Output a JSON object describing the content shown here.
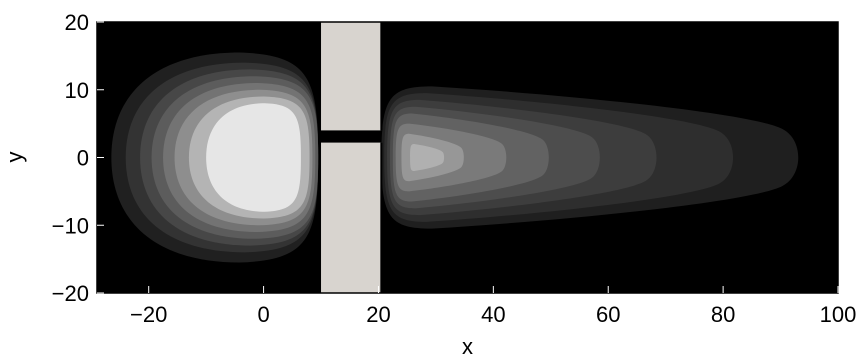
{
  "chart_data": {
    "type": "contour",
    "title": "",
    "xlabel": "x",
    "ylabel": "y",
    "xlim": [
      -29,
      100
    ],
    "ylim": [
      -20,
      20
    ],
    "xticks": [
      -20,
      0,
      20,
      40,
      60,
      80,
      100
    ],
    "yticks": [
      -20,
      -10,
      0,
      10,
      20
    ],
    "xtick_labels": [
      "−20",
      "0",
      "20",
      "40",
      "60",
      "80",
      "100"
    ],
    "ytick_labels": [
      "−20",
      "−10",
      "0",
      "10",
      "20"
    ],
    "background_color": "#000000",
    "wall": {
      "color": "#d8d4cf",
      "x_range": [
        10,
        20.5
      ],
      "slit_y_range": [
        2.2,
        4.0
      ]
    },
    "left_lobe": {
      "center": [
        -3,
        0
      ],
      "levels": [
        {
          "x_extent": [
            -26.5,
            9.5
          ],
          "y_half": 15.5,
          "color": "#202020"
        },
        {
          "x_extent": [
            -24.0,
            9.5
          ],
          "y_half": 14.0,
          "color": "#333333"
        },
        {
          "x_extent": [
            -21.5,
            9.5
          ],
          "y_half": 13.0,
          "color": "#474747"
        },
        {
          "x_extent": [
            -19.5,
            9.5
          ],
          "y_half": 12.0,
          "color": "#5c5c5c"
        },
        {
          "x_extent": [
            -17.5,
            9.0
          ],
          "y_half": 11.0,
          "color": "#737373"
        },
        {
          "x_extent": [
            -15.5,
            8.5
          ],
          "y_half": 10.0,
          "color": "#8e8e8e"
        },
        {
          "x_extent": [
            -13.0,
            8.0
          ],
          "y_half": 9.0,
          "color": "#b4b4b4"
        },
        {
          "x_extent": [
            -10.0,
            6.5
          ],
          "y_half": 8.0,
          "color": "#e6e6e6"
        }
      ]
    },
    "right_lobe": {
      "levels": [
        {
          "x_extent": [
            20.5,
            94.0
          ],
          "y_half": 10.5,
          "color": "#1f1f1f"
        },
        {
          "x_extent": [
            21.0,
            82.5
          ],
          "y_half": 9.5,
          "color": "#2e2e2e"
        },
        {
          "x_extent": [
            21.5,
            69.0
          ],
          "y_half": 8.5,
          "color": "#3d3d3d"
        },
        {
          "x_extent": [
            22.0,
            59.0
          ],
          "y_half": 7.5,
          "color": "#4d4d4d"
        },
        {
          "x_extent": [
            22.5,
            50.0
          ],
          "y_half": 6.5,
          "color": "#626262"
        },
        {
          "x_extent": [
            23.0,
            42.5
          ],
          "y_half": 5.0,
          "color": "#7a7a7a"
        },
        {
          "x_extent": [
            24.0,
            35.0
          ],
          "y_half": 3.5,
          "color": "#979797"
        },
        {
          "x_extent": [
            25.5,
            31.5
          ],
          "y_half": 2.0,
          "color": "#b0b0b0"
        }
      ]
    }
  }
}
